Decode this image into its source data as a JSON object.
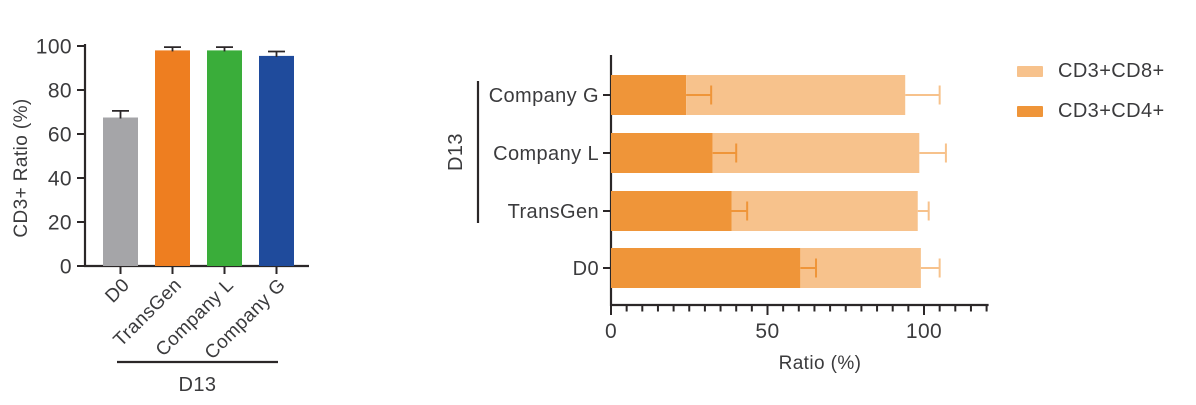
{
  "figure": {
    "background": "#ffffff",
    "text_color": "#3b3b3d",
    "axis_color": "#2b2728"
  },
  "chart_data": [
    {
      "type": "bar",
      "ylabel": "CD3+ Ratio (%)",
      "xlabel": "",
      "ylim": [
        0,
        100
      ],
      "yticks": [
        0,
        20,
        40,
        60,
        80,
        100
      ],
      "categories": [
        "D0",
        "TransGen",
        "Company L",
        "Company G"
      ],
      "values": [
        67.5,
        98,
        98,
        95.5
      ],
      "errors": [
        3,
        1.5,
        1.5,
        2
      ],
      "bar_colors": [
        "#a5a5a8",
        "#ee7e20",
        "#3aad3a",
        "#1f4b9c"
      ],
      "error_bar_color": "#2b2728",
      "grid": false,
      "group": {
        "label": "D13",
        "members": [
          "TransGen",
          "Company L",
          "Company G"
        ]
      }
    },
    {
      "type": "stacked-bar-horizontal",
      "xlabel": "Ratio (%)",
      "ylabel": "",
      "xlim": [
        0,
        120
      ],
      "xticks": [
        0,
        50,
        100
      ],
      "minor_tick_step": 5,
      "categories": [
        "Company G",
        "Company L",
        "TransGen",
        "D0"
      ],
      "series": [
        {
          "name": "CD3+CD4+",
          "color": "#ef9539",
          "values": [
            24,
            32.5,
            38.5,
            60.5
          ],
          "errors": [
            8,
            7.5,
            5,
            5
          ]
        },
        {
          "name": "CD3+CD8+",
          "color": "#f7c28c",
          "values": [
            70,
            66,
            59.5,
            38.5
          ],
          "errors": [
            11,
            8.5,
            3.5,
            6
          ]
        }
      ],
      "totals": [
        94,
        98.5,
        98,
        99
      ],
      "grid": false,
      "group": {
        "label": "D13",
        "members": [
          "Company G",
          "Company L",
          "TransGen"
        ]
      },
      "legend": {
        "position": "top-right",
        "items": [
          {
            "label": "CD3+CD8+",
            "color": "#f7c28c"
          },
          {
            "label": "CD3+CD4+",
            "color": "#ef9539"
          }
        ]
      }
    }
  ]
}
